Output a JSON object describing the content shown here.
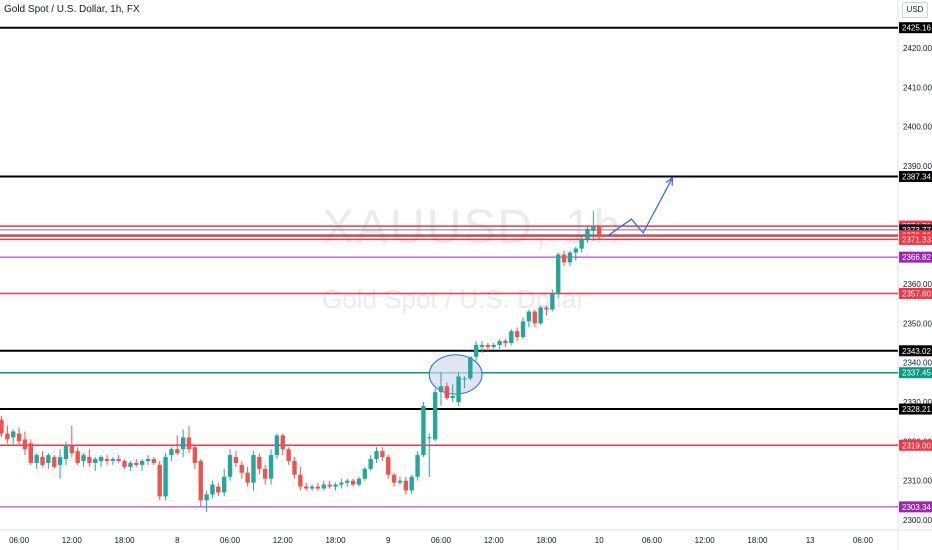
{
  "header": {
    "symbol_title": "Gold Spot / U.S. Dollar, 1h, FX",
    "currency": "USD"
  },
  "watermark": {
    "ticker": "XAUUSD, 1h",
    "name": "Gold Spot / U.S. Dollar"
  },
  "colors": {
    "up": "#26a69a",
    "down": "#ef5350",
    "line_black": "#000000",
    "line_red": "#f23645",
    "line_purple": "#9c27b0",
    "line_green": "#089981",
    "line_gray": "#787b86",
    "arrow": "#2962ff",
    "ellipse_fill": "#d0dcf0",
    "ellipse_stroke": "#2962ff"
  },
  "chart_data": {
    "type": "candlestick",
    "ylim": [
      2298,
      2430
    ],
    "y_ticks": [
      2300,
      2310,
      2320,
      2330,
      2340,
      2350,
      2360,
      2390,
      2400,
      2410,
      2420
    ],
    "y_tick_labels": [
      "2300.00",
      "2310.00",
      "2320.00",
      "2330.00",
      "2340.00",
      "2350.00",
      "2360.00",
      "2390.00",
      "2400.00",
      "2410.00",
      "2420.00"
    ],
    "x_tick_labels": [
      {
        "bar": 3,
        "label": "06:00"
      },
      {
        "bar": 12,
        "label": "12:00"
      },
      {
        "bar": 21,
        "label": "18:00"
      },
      {
        "bar": 30,
        "label": "8"
      },
      {
        "bar": 39,
        "label": "06:00"
      },
      {
        "bar": 48,
        "label": "12:00"
      },
      {
        "bar": 57,
        "label": "18:00"
      },
      {
        "bar": 66,
        "label": "9"
      },
      {
        "bar": 75,
        "label": "06:00"
      },
      {
        "bar": 84,
        "label": "12:00"
      },
      {
        "bar": 93,
        "label": "18:00"
      },
      {
        "bar": 102,
        "label": "10"
      },
      {
        "bar": 111,
        "label": "06:00"
      },
      {
        "bar": 120,
        "label": "12:00"
      },
      {
        "bar": 129,
        "label": "18:00"
      },
      {
        "bar": 138,
        "label": "13"
      },
      {
        "bar": 147,
        "label": "06:00"
      }
    ],
    "candles": [
      [
        2325.5,
        2326.5,
        2321.0,
        2322.0
      ],
      [
        2322.0,
        2324.0,
        2319.5,
        2320.5
      ],
      [
        2321.0,
        2323.0,
        2319.0,
        2322.5
      ],
      [
        2322.0,
        2323.5,
        2319.0,
        2320.0
      ],
      [
        2320.5,
        2322.5,
        2316.5,
        2318.0
      ],
      [
        2319.5,
        2320.5,
        2314.0,
        2314.5
      ],
      [
        2314.5,
        2317.0,
        2313.0,
        2316.5
      ],
      [
        2316.0,
        2317.5,
        2313.5,
        2314.0
      ],
      [
        2314.5,
        2317.0,
        2313.0,
        2316.5
      ],
      [
        2316.0,
        2316.5,
        2313.0,
        2313.5
      ],
      [
        2314.0,
        2318.0,
        2310.5,
        2316.0
      ],
      [
        2315.5,
        2320.0,
        2314.0,
        2319.0
      ],
      [
        2319.0,
        2324.0,
        2316.0,
        2317.0
      ],
      [
        2317.5,
        2318.5,
        2314.0,
        2314.5
      ],
      [
        2315.0,
        2317.0,
        2313.5,
        2316.5
      ],
      [
        2316.0,
        2318.0,
        2313.5,
        2314.5
      ],
      [
        2314.5,
        2316.0,
        2312.5,
        2315.5
      ],
      [
        2315.0,
        2316.5,
        2313.5,
        2316.0
      ],
      [
        2315.5,
        2316.5,
        2314.0,
        2315.0
      ],
      [
        2315.0,
        2316.0,
        2314.0,
        2315.5
      ],
      [
        2315.5,
        2316.5,
        2314.5,
        2315.0
      ],
      [
        2315.0,
        2315.5,
        2313.0,
        2313.5
      ],
      [
        2313.5,
        2315.0,
        2312.5,
        2314.5
      ],
      [
        2314.5,
        2315.5,
        2313.5,
        2314.0
      ],
      [
        2314.0,
        2315.5,
        2312.5,
        2315.0
      ],
      [
        2315.0,
        2316.5,
        2314.0,
        2315.5
      ],
      [
        2315.5,
        2316.0,
        2314.0,
        2314.5
      ],
      [
        2314.0,
        2315.0,
        2305.0,
        2306.0
      ],
      [
        2306.0,
        2317.0,
        2305.0,
        2316.0
      ],
      [
        2316.5,
        2318.5,
        2315.0,
        2318.0
      ],
      [
        2318.0,
        2321.5,
        2316.5,
        2317.0
      ],
      [
        2318.0,
        2323.0,
        2316.0,
        2321.0
      ],
      [
        2321.0,
        2324.0,
        2317.0,
        2318.0
      ],
      [
        2318.5,
        2319.0,
        2313.0,
        2314.5
      ],
      [
        2315.0,
        2315.5,
        2303.5,
        2305.0
      ],
      [
        2305.0,
        2307.5,
        2302.0,
        2306.5
      ],
      [
        2306.5,
        2310.0,
        2305.5,
        2309.0
      ],
      [
        2308.5,
        2309.5,
        2306.0,
        2307.0
      ],
      [
        2307.0,
        2313.0,
        2306.0,
        2311.0
      ],
      [
        2311.0,
        2318.0,
        2310.0,
        2316.5
      ],
      [
        2316.0,
        2317.5,
        2313.5,
        2314.5
      ],
      [
        2314.0,
        2315.0,
        2310.5,
        2312.0
      ],
      [
        2312.0,
        2313.5,
        2308.5,
        2309.5
      ],
      [
        2309.5,
        2317.5,
        2307.5,
        2316.5
      ],
      [
        2316.0,
        2317.0,
        2311.5,
        2313.0
      ],
      [
        2313.0,
        2314.0,
        2309.0,
        2310.5
      ],
      [
        2310.5,
        2318.0,
        2309.0,
        2316.5
      ],
      [
        2316.5,
        2322.0,
        2315.5,
        2321.5
      ],
      [
        2321.5,
        2322.0,
        2316.5,
        2318.0
      ],
      [
        2318.0,
        2318.5,
        2314.0,
        2315.0
      ],
      [
        2315.0,
        2316.0,
        2310.5,
        2311.5
      ],
      [
        2311.5,
        2313.5,
        2307.5,
        2308.5
      ],
      [
        2308.5,
        2309.5,
        2307.5,
        2308.0
      ],
      [
        2308.0,
        2309.0,
        2307.5,
        2308.5
      ],
      [
        2308.5,
        2309.5,
        2307.5,
        2308.0
      ],
      [
        2308.0,
        2310.0,
        2307.5,
        2309.0
      ],
      [
        2309.0,
        2310.0,
        2308.0,
        2308.5
      ],
      [
        2308.5,
        2309.5,
        2307.5,
        2309.0
      ],
      [
        2309.0,
        2310.5,
        2308.0,
        2309.5
      ],
      [
        2309.5,
        2310.5,
        2308.5,
        2310.0
      ],
      [
        2310.0,
        2310.5,
        2308.5,
        2309.0
      ],
      [
        2309.0,
        2311.0,
        2308.5,
        2310.5
      ],
      [
        2310.5,
        2313.5,
        2310.0,
        2313.0
      ],
      [
        2313.0,
        2316.5,
        2312.5,
        2315.5
      ],
      [
        2315.5,
        2318.5,
        2314.5,
        2317.5
      ],
      [
        2317.5,
        2318.5,
        2315.0,
        2316.0
      ],
      [
        2316.0,
        2316.5,
        2310.5,
        2311.5
      ],
      [
        2311.5,
        2312.0,
        2308.5,
        2309.5
      ],
      [
        2309.5,
        2311.0,
        2309.0,
        2310.0
      ],
      [
        2310.0,
        2311.0,
        2306.5,
        2307.5
      ],
      [
        2307.5,
        2311.5,
        2306.5,
        2311.0
      ],
      [
        2311.0,
        2317.5,
        2310.0,
        2316.5
      ],
      [
        2316.5,
        2330.0,
        2316.0,
        2329.0
      ],
      [
        2321.0,
        2322.0,
        2311.0,
        2321.0
      ],
      [
        2320.5,
        2333.5,
        2320.0,
        2332.5
      ],
      [
        2332.5,
        2337.5,
        2329.0,
        2334.0
      ],
      [
        2334.0,
        2335.0,
        2330.5,
        2331.0
      ],
      [
        2331.0,
        2334.5,
        2330.0,
        2331.5
      ],
      [
        2330.0,
        2337.5,
        2329.0,
        2336.5
      ],
      [
        2336.0,
        2336.5,
        2333.5,
        2336.0
      ],
      [
        2336.0,
        2341.5,
        2335.5,
        2341.5
      ],
      [
        2341.5,
        2345.5,
        2340.5,
        2344.5
      ],
      [
        2344.0,
        2345.5,
        2342.5,
        2344.5
      ],
      [
        2344.5,
        2345.0,
        2343.0,
        2344.0
      ],
      [
        2344.0,
        2345.0,
        2343.5,
        2344.5
      ],
      [
        2344.5,
        2346.0,
        2343.5,
        2345.5
      ],
      [
        2345.5,
        2346.0,
        2344.0,
        2345.0
      ],
      [
        2345.0,
        2348.5,
        2344.5,
        2348.0
      ],
      [
        2348.0,
        2349.0,
        2345.5,
        2346.5
      ],
      [
        2346.5,
        2351.5,
        2346.0,
        2350.5
      ],
      [
        2350.5,
        2353.5,
        2349.0,
        2353.0
      ],
      [
        2353.0,
        2353.5,
        2349.0,
        2350.0
      ],
      [
        2350.0,
        2354.5,
        2349.5,
        2354.0
      ],
      [
        2354.0,
        2354.5,
        2352.0,
        2353.5
      ],
      [
        2353.5,
        2358.5,
        2353.0,
        2357.5
      ],
      [
        2357.5,
        2368.0,
        2356.5,
        2367.5
      ],
      [
        2367.5,
        2368.5,
        2364.5,
        2365.5
      ],
      [
        2365.5,
        2368.5,
        2364.5,
        2368.0
      ],
      [
        2368.0,
        2369.5,
        2366.0,
        2369.0
      ],
      [
        2369.0,
        2372.0,
        2368.0,
        2371.5
      ],
      [
        2371.5,
        2374.5,
        2370.5,
        2374.0
      ],
      [
        2373.5,
        2378.5,
        2371.0,
        2374.5
      ],
      [
        2374.5,
        2375.0,
        2371.5,
        2372.3
      ]
    ],
    "price_lines": [
      {
        "value": 2425.16,
        "label": "2425.16",
        "style": "black"
      },
      {
        "value": 2387.34,
        "label": "2387.34",
        "style": "black"
      },
      {
        "value": 2374.71,
        "label": "2374.71",
        "style": "red"
      },
      {
        "value": 2373.77,
        "label": "2373.77",
        "style": "gray"
      },
      {
        "value": 2372.31,
        "label": "2372.31",
        "style": "black"
      },
      {
        "value": 2372.29,
        "label": "2372.29",
        "style": "red"
      },
      {
        "value": 2371.33,
        "label": "2371.33",
        "style": "red"
      },
      {
        "value": 2366.82,
        "label": "2366.82",
        "style": "purple"
      },
      {
        "value": 2357.6,
        "label": "2357.60",
        "style": "red"
      },
      {
        "value": 2343.02,
        "label": "2343.02",
        "style": "black"
      },
      {
        "value": 2337.45,
        "label": "2337.45",
        "style": "green"
      },
      {
        "value": 2328.21,
        "label": "2328.21",
        "style": "black"
      },
      {
        "value": 2319.0,
        "label": "2319.00",
        "style": "red"
      },
      {
        "value": 2303.34,
        "label": "2303.34",
        "style": "purple"
      }
    ],
    "projection_path": [
      {
        "bar": 103.5,
        "price": 2372.3
      },
      {
        "bar": 107.5,
        "price": 2376.5
      },
      {
        "bar": 109.5,
        "price": 2373.0
      },
      {
        "bar": 114.5,
        "price": 2387.0
      }
    ],
    "highlight_ellipse": {
      "bar_center": 77.5,
      "price_center": 2337.0,
      "bar_radius": 4.5,
      "price_radius": 5.0
    }
  }
}
